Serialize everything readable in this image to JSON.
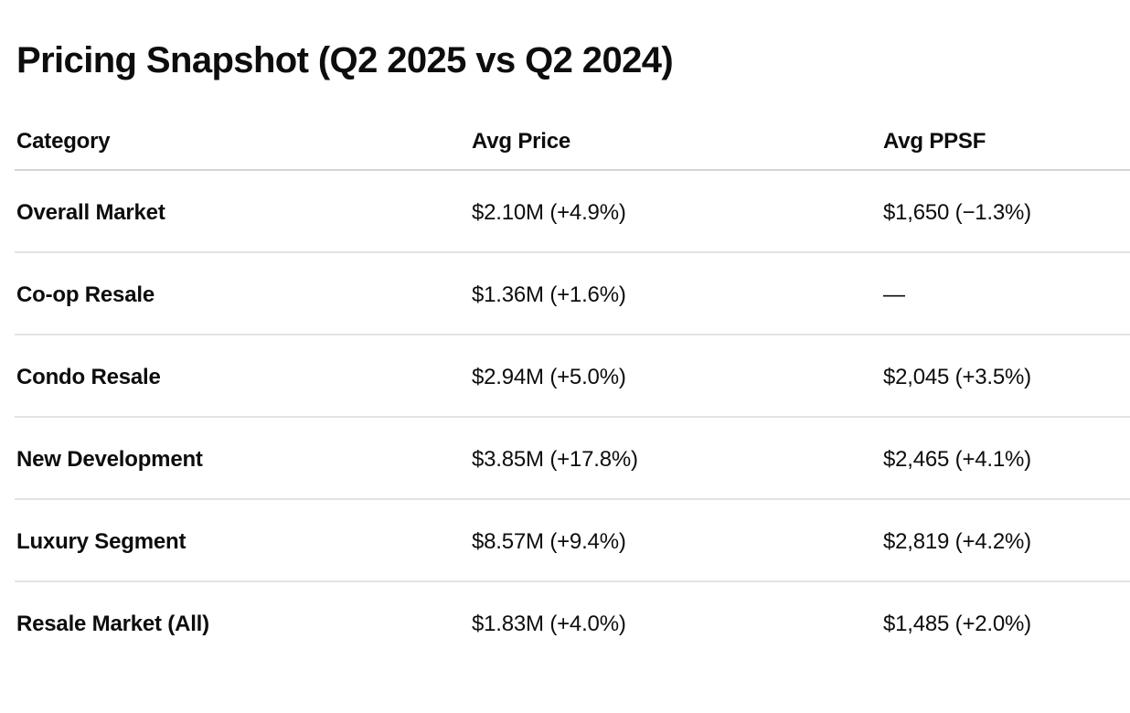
{
  "page": {
    "title": "Pricing Snapshot (Q2 2025 vs Q2 2024)",
    "background_color": "#ffffff",
    "text_color": "#0d0d0d",
    "header_divider_color": "#d6d6d6",
    "row_divider_color": "#e3e3e3"
  },
  "table": {
    "columns": {
      "category": "Category",
      "avg_price": "Avg Price",
      "avg_ppsf": "Avg PPSF"
    },
    "rows": [
      {
        "category": "Overall Market",
        "avg_price": "$2.10M (+4.9%)",
        "avg_ppsf": "$1,650 (−1.3%)"
      },
      {
        "category": "Co-op Resale",
        "avg_price": "$1.36M (+1.6%)",
        "avg_ppsf": "—"
      },
      {
        "category": "Condo Resale",
        "avg_price": "$2.94M (+5.0%)",
        "avg_ppsf": "$2,045 (+3.5%)"
      },
      {
        "category": "New Development",
        "avg_price": "$3.85M (+17.8%)",
        "avg_ppsf": "$2,465 (+4.1%)"
      },
      {
        "category": "Luxury Segment",
        "avg_price": "$8.57M (+9.4%)",
        "avg_ppsf": "$2,819 (+4.2%)"
      },
      {
        "category": "Resale Market (All)",
        "avg_price": "$1.83M (+4.0%)",
        "avg_ppsf": "$1,485 (+2.0%)"
      }
    ]
  }
}
